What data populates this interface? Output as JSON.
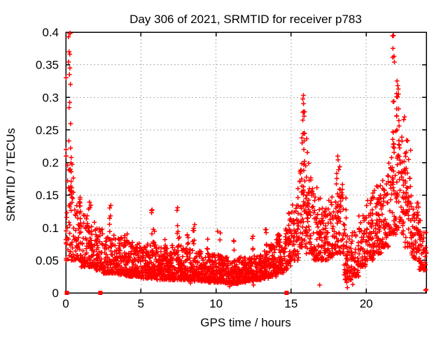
{
  "chart_data": {
    "type": "scatter",
    "title": "Day 306 of 2021, SRMTID for receiver p783",
    "xlabel": "GPS time / hours",
    "ylabel": "SRMTID / TECUs",
    "xlim": [
      0,
      24
    ],
    "ylim": [
      0,
      0.4
    ],
    "xticks": [
      0,
      5,
      10,
      15,
      20
    ],
    "xtick_labels": [
      "0",
      "5",
      "10",
      "15",
      "20"
    ],
    "yticks": [
      0,
      0.05,
      0.1,
      0.15,
      0.2,
      0.25,
      0.3,
      0.35,
      0.4
    ],
    "ytick_labels": [
      "0",
      "0.05",
      "0.1",
      "0.15",
      "0.2",
      "0.25",
      "0.3",
      "0.35",
      "0.4"
    ],
    "grid": true,
    "legend": "none",
    "marker": "plus",
    "colors": {
      "points": "#ff0000",
      "grid": "#b0b0b0",
      "axis": "#000000",
      "background": "#ffffff"
    },
    "seed": 20211306,
    "band_bins_format": "[hourStart, hourEnd, count, yMin, yMax]",
    "band_bins": [
      [
        0.0,
        0.5,
        40,
        0.05,
        0.2
      ],
      [
        0.5,
        1.0,
        48,
        0.05,
        0.15
      ],
      [
        1.0,
        1.5,
        52,
        0.04,
        0.12
      ],
      [
        1.5,
        2.0,
        55,
        0.04,
        0.11
      ],
      [
        2.0,
        2.5,
        58,
        0.035,
        0.1
      ],
      [
        2.5,
        3.0,
        58,
        0.03,
        0.095
      ],
      [
        3.0,
        3.5,
        60,
        0.03,
        0.09
      ],
      [
        3.5,
        4.0,
        60,
        0.028,
        0.085
      ],
      [
        4.0,
        4.5,
        62,
        0.025,
        0.08
      ],
      [
        4.5,
        5.0,
        62,
        0.025,
        0.078
      ],
      [
        5.0,
        5.5,
        64,
        0.022,
        0.075
      ],
      [
        5.5,
        6.0,
        64,
        0.022,
        0.078
      ],
      [
        6.0,
        6.5,
        66,
        0.02,
        0.072
      ],
      [
        6.5,
        7.0,
        66,
        0.02,
        0.07
      ],
      [
        7.0,
        7.5,
        66,
        0.02,
        0.075
      ],
      [
        7.5,
        8.0,
        66,
        0.02,
        0.075
      ],
      [
        8.0,
        8.5,
        66,
        0.02,
        0.07
      ],
      [
        8.5,
        9.0,
        66,
        0.018,
        0.065
      ],
      [
        9.0,
        9.5,
        66,
        0.018,
        0.062
      ],
      [
        9.5,
        10.0,
        66,
        0.016,
        0.06
      ],
      [
        10.0,
        10.5,
        66,
        0.016,
        0.058
      ],
      [
        10.5,
        11.0,
        66,
        0.015,
        0.055
      ],
      [
        11.0,
        11.5,
        66,
        0.014,
        0.05
      ],
      [
        11.5,
        12.0,
        66,
        0.016,
        0.055
      ],
      [
        12.0,
        12.5,
        66,
        0.018,
        0.058
      ],
      [
        12.5,
        13.0,
        66,
        0.02,
        0.06
      ],
      [
        13.0,
        13.5,
        64,
        0.022,
        0.065
      ],
      [
        13.5,
        14.0,
        62,
        0.025,
        0.075
      ],
      [
        14.0,
        14.5,
        58,
        0.03,
        0.09
      ],
      [
        14.5,
        15.0,
        55,
        0.035,
        0.11
      ],
      [
        15.0,
        15.5,
        50,
        0.05,
        0.15
      ],
      [
        15.5,
        16.0,
        46,
        0.07,
        0.2
      ],
      [
        16.0,
        16.5,
        48,
        0.06,
        0.18
      ],
      [
        16.5,
        17.0,
        50,
        0.05,
        0.15
      ],
      [
        17.0,
        17.5,
        50,
        0.05,
        0.13
      ],
      [
        17.5,
        18.0,
        48,
        0.055,
        0.15
      ],
      [
        18.0,
        18.5,
        46,
        0.06,
        0.17
      ],
      [
        18.5,
        19.0,
        46,
        0.02,
        0.1
      ],
      [
        19.0,
        19.5,
        50,
        0.025,
        0.095
      ],
      [
        19.5,
        20.0,
        50,
        0.04,
        0.12
      ],
      [
        20.0,
        20.5,
        50,
        0.05,
        0.15
      ],
      [
        20.5,
        21.0,
        50,
        0.06,
        0.17
      ],
      [
        21.0,
        21.5,
        48,
        0.07,
        0.18
      ],
      [
        21.5,
        22.0,
        44,
        0.09,
        0.25
      ],
      [
        22.0,
        22.5,
        44,
        0.09,
        0.27
      ],
      [
        22.5,
        23.0,
        46,
        0.07,
        0.22
      ],
      [
        23.0,
        23.5,
        50,
        0.05,
        0.14
      ],
      [
        23.5,
        24.0,
        50,
        0.035,
        0.1
      ]
    ],
    "spike_columns_format": "[hourCenter, halfWidth, count, yBase, yTop]",
    "spike_columns": [
      [
        0.25,
        0.08,
        10,
        0.22,
        0.4
      ],
      [
        0.3,
        0.25,
        14,
        0.15,
        0.23
      ],
      [
        1.0,
        0.1,
        4,
        0.12,
        0.155
      ],
      [
        1.6,
        0.1,
        5,
        0.1,
        0.155
      ],
      [
        2.9,
        0.1,
        6,
        0.09,
        0.15
      ],
      [
        4.0,
        0.1,
        4,
        0.08,
        0.11
      ],
      [
        5.8,
        0.12,
        8,
        0.07,
        0.13
      ],
      [
        6.6,
        0.1,
        5,
        0.068,
        0.1
      ],
      [
        7.5,
        0.1,
        8,
        0.07,
        0.135
      ],
      [
        8.1,
        0.08,
        5,
        0.065,
        0.11
      ],
      [
        8.5,
        0.1,
        7,
        0.06,
        0.125
      ],
      [
        9.4,
        0.08,
        4,
        0.055,
        0.09
      ],
      [
        10.2,
        0.1,
        6,
        0.05,
        0.1
      ],
      [
        11.2,
        0.08,
        4,
        0.045,
        0.085
      ],
      [
        12.4,
        0.1,
        5,
        0.05,
        0.09
      ],
      [
        13.3,
        0.1,
        5,
        0.055,
        0.1
      ],
      [
        14.9,
        0.08,
        6,
        0.09,
        0.148
      ],
      [
        15.4,
        0.1,
        6,
        0.1,
        0.17
      ],
      [
        15.8,
        0.12,
        26,
        0.12,
        0.3
      ],
      [
        16.1,
        0.08,
        10,
        0.1,
        0.25
      ],
      [
        16.6,
        0.12,
        8,
        0.09,
        0.165
      ],
      [
        17.3,
        0.1,
        5,
        0.08,
        0.13
      ],
      [
        18.15,
        0.12,
        13,
        0.08,
        0.21
      ],
      [
        18.6,
        0.08,
        5,
        0.08,
        0.155
      ],
      [
        20.3,
        0.15,
        8,
        0.09,
        0.16
      ],
      [
        20.8,
        0.15,
        8,
        0.1,
        0.19
      ],
      [
        21.3,
        0.12,
        7,
        0.1,
        0.2
      ],
      [
        21.8,
        0.08,
        15,
        0.15,
        0.397
      ],
      [
        22.1,
        0.12,
        14,
        0.18,
        0.327
      ],
      [
        22.4,
        0.1,
        8,
        0.12,
        0.26
      ],
      [
        22.65,
        0.12,
        10,
        0.12,
        0.27
      ],
      [
        23.5,
        0.1,
        7,
        0.055,
        0.15
      ]
    ],
    "outliers_format": "[hour, value]",
    "outliers": [
      [
        0.26,
        0.398
      ],
      [
        0.22,
        0.37
      ],
      [
        0.27,
        0.345
      ],
      [
        0.24,
        0.335
      ],
      [
        0.02,
        0.33
      ],
      [
        0.02,
        0.22
      ],
      [
        0.03,
        0.21
      ],
      [
        0.02,
        0.095
      ],
      [
        0.03,
        0.05
      ],
      [
        21.82,
        0.395
      ],
      [
        21.78,
        0.375
      ],
      [
        21.85,
        0.363
      ],
      [
        22.05,
        0.325
      ],
      [
        22.1,
        0.318
      ],
      [
        22.15,
        0.305
      ],
      [
        15.82,
        0.303
      ],
      [
        15.78,
        0.265
      ],
      [
        22.55,
        0.27
      ],
      [
        10.9,
        0.01
      ],
      [
        12.5,
        0.012
      ],
      [
        8.3,
        0.015
      ],
      [
        16.9,
        0.012
      ],
      [
        18.7,
        0.016
      ],
      [
        18.75,
        0.008
      ],
      [
        19.0,
        0.02
      ],
      [
        19.1,
        0.013
      ],
      [
        23.95,
        0.004
      ],
      [
        23.99,
        0.005
      ]
    ],
    "zero_markers": {
      "shape": "filled-square",
      "y": 0,
      "x": [
        0.07,
        2.3,
        14.7
      ]
    }
  }
}
